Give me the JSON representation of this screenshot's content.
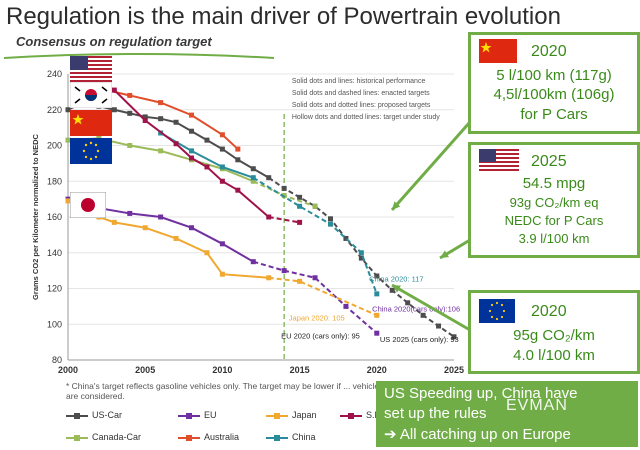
{
  "title": "Regulation is the main driver of Powertrain evolution",
  "subtitle": "Consensus on regulation target",
  "chart_data": {
    "type": "line",
    "ylabel": "Grams CO2 per Kilometer normalized to NEDC",
    "xlim": [
      2000,
      2025
    ],
    "ylim": [
      80,
      240
    ],
    "xticks": [
      2000,
      2005,
      2010,
      2015,
      2020,
      2025
    ],
    "yticks": [
      80,
      100,
      120,
      140,
      160,
      180,
      200,
      220,
      240
    ],
    "notes": [
      "Solid dots and lines: historical performance",
      "Solid dots and dashed lines: enacted targets",
      "Solid dots and dotted lines: proposed targets",
      "Hollow dots and dotted lines: target under study"
    ],
    "annotations": {
      "china": "China 2020: 117",
      "china_cars": "China 2020(cars only):106",
      "japan": "Japan 2020: 105",
      "eu": "EU 2020 (cars only): 95",
      "us": "US 2025 (cars only): 93"
    },
    "series": [
      {
        "name": "US-Car",
        "color": "#4d4d4d",
        "x": [
          2000,
          2001,
          2002,
          2003,
          2004,
          2005,
          2006,
          2007,
          2008,
          2009,
          2010,
          2011,
          2012,
          2013,
          2014,
          2015,
          2016,
          2017,
          2018,
          2019,
          2020,
          2021,
          2022,
          2023,
          2024,
          2025
        ],
        "values": [
          220,
          224,
          222,
          220,
          218,
          216,
          215,
          213,
          208,
          203,
          198,
          192,
          187,
          182,
          176,
          171,
          166,
          159,
          148,
          137,
          127,
          119,
          112,
          105,
          99,
          93
        ]
      },
      {
        "name": "Canada-Car",
        "color": "#9bbb59",
        "x": [
          2000,
          2002,
          2004,
          2006,
          2008,
          2010,
          2012,
          2014,
          2016
        ],
        "values": [
          203,
          204,
          200,
          197,
          192,
          187,
          180,
          172,
          166
        ]
      },
      {
        "name": "EU",
        "color": "#7030a0",
        "x": [
          2000,
          2002,
          2004,
          2006,
          2008,
          2010,
          2012,
          2014,
          2016,
          2018,
          2020
        ],
        "values": [
          170,
          165,
          162,
          160,
          154,
          145,
          135,
          130,
          126,
          110,
          95
        ]
      },
      {
        "name": "Australia",
        "color": "#e04e2b",
        "x": [
          2002,
          2004,
          2006,
          2008,
          2010,
          2011
        ],
        "values": [
          232,
          228,
          224,
          217,
          206,
          198
        ]
      },
      {
        "name": "Japan",
        "color": "#f0a830",
        "x": [
          2000,
          2001,
          2002,
          2003,
          2005,
          2007,
          2009,
          2010,
          2013,
          2015,
          2020
        ],
        "values": [
          169,
          166,
          160,
          157,
          154,
          148,
          140,
          128,
          126,
          124,
          105
        ]
      },
      {
        "name": "China",
        "color": "#2a8c9a",
        "x": [
          2006,
          2008,
          2010,
          2012,
          2015,
          2017,
          2019,
          2020
        ],
        "values": [
          207,
          197,
          188,
          182,
          166,
          156,
          140,
          117
        ]
      },
      {
        "name": "S.Korea",
        "color": "#a0134a",
        "x": [
          2003,
          2005,
          2007,
          2008,
          2009,
          2010,
          2011,
          2013,
          2015
        ],
        "values": [
          231,
          214,
          201,
          193,
          188,
          180,
          175,
          160,
          157
        ]
      }
    ]
  },
  "legend": [
    "US-Car",
    "EU",
    "Japan",
    "S.Korea",
    "Canada-Car",
    "Australia",
    "China"
  ],
  "footnote": "* China's target reflects gasoline vehicles only. The target may be lower if ... vehicles are considered.",
  "boxes": {
    "china": {
      "year": "2020",
      "line1": "5 l/100 km (117g)",
      "line2": "4,5l/100km (106g)",
      "line3": "for P Cars"
    },
    "us": {
      "year": "2025",
      "line1": "54.5 mpg",
      "line2": "93g CO₂/km eq",
      "line3": "NEDC for P Cars",
      "line4": "3.9 l/100 km"
    },
    "eu": {
      "year": "2020",
      "line1": "95g CO₂/km",
      "line2": "4.0 l/100 km"
    }
  },
  "banner": {
    "line1": "US Speeding up, China have",
    "line2": "set up the rules",
    "line3": "➔ All catching up on Europe"
  },
  "watermark": "EVMAN"
}
